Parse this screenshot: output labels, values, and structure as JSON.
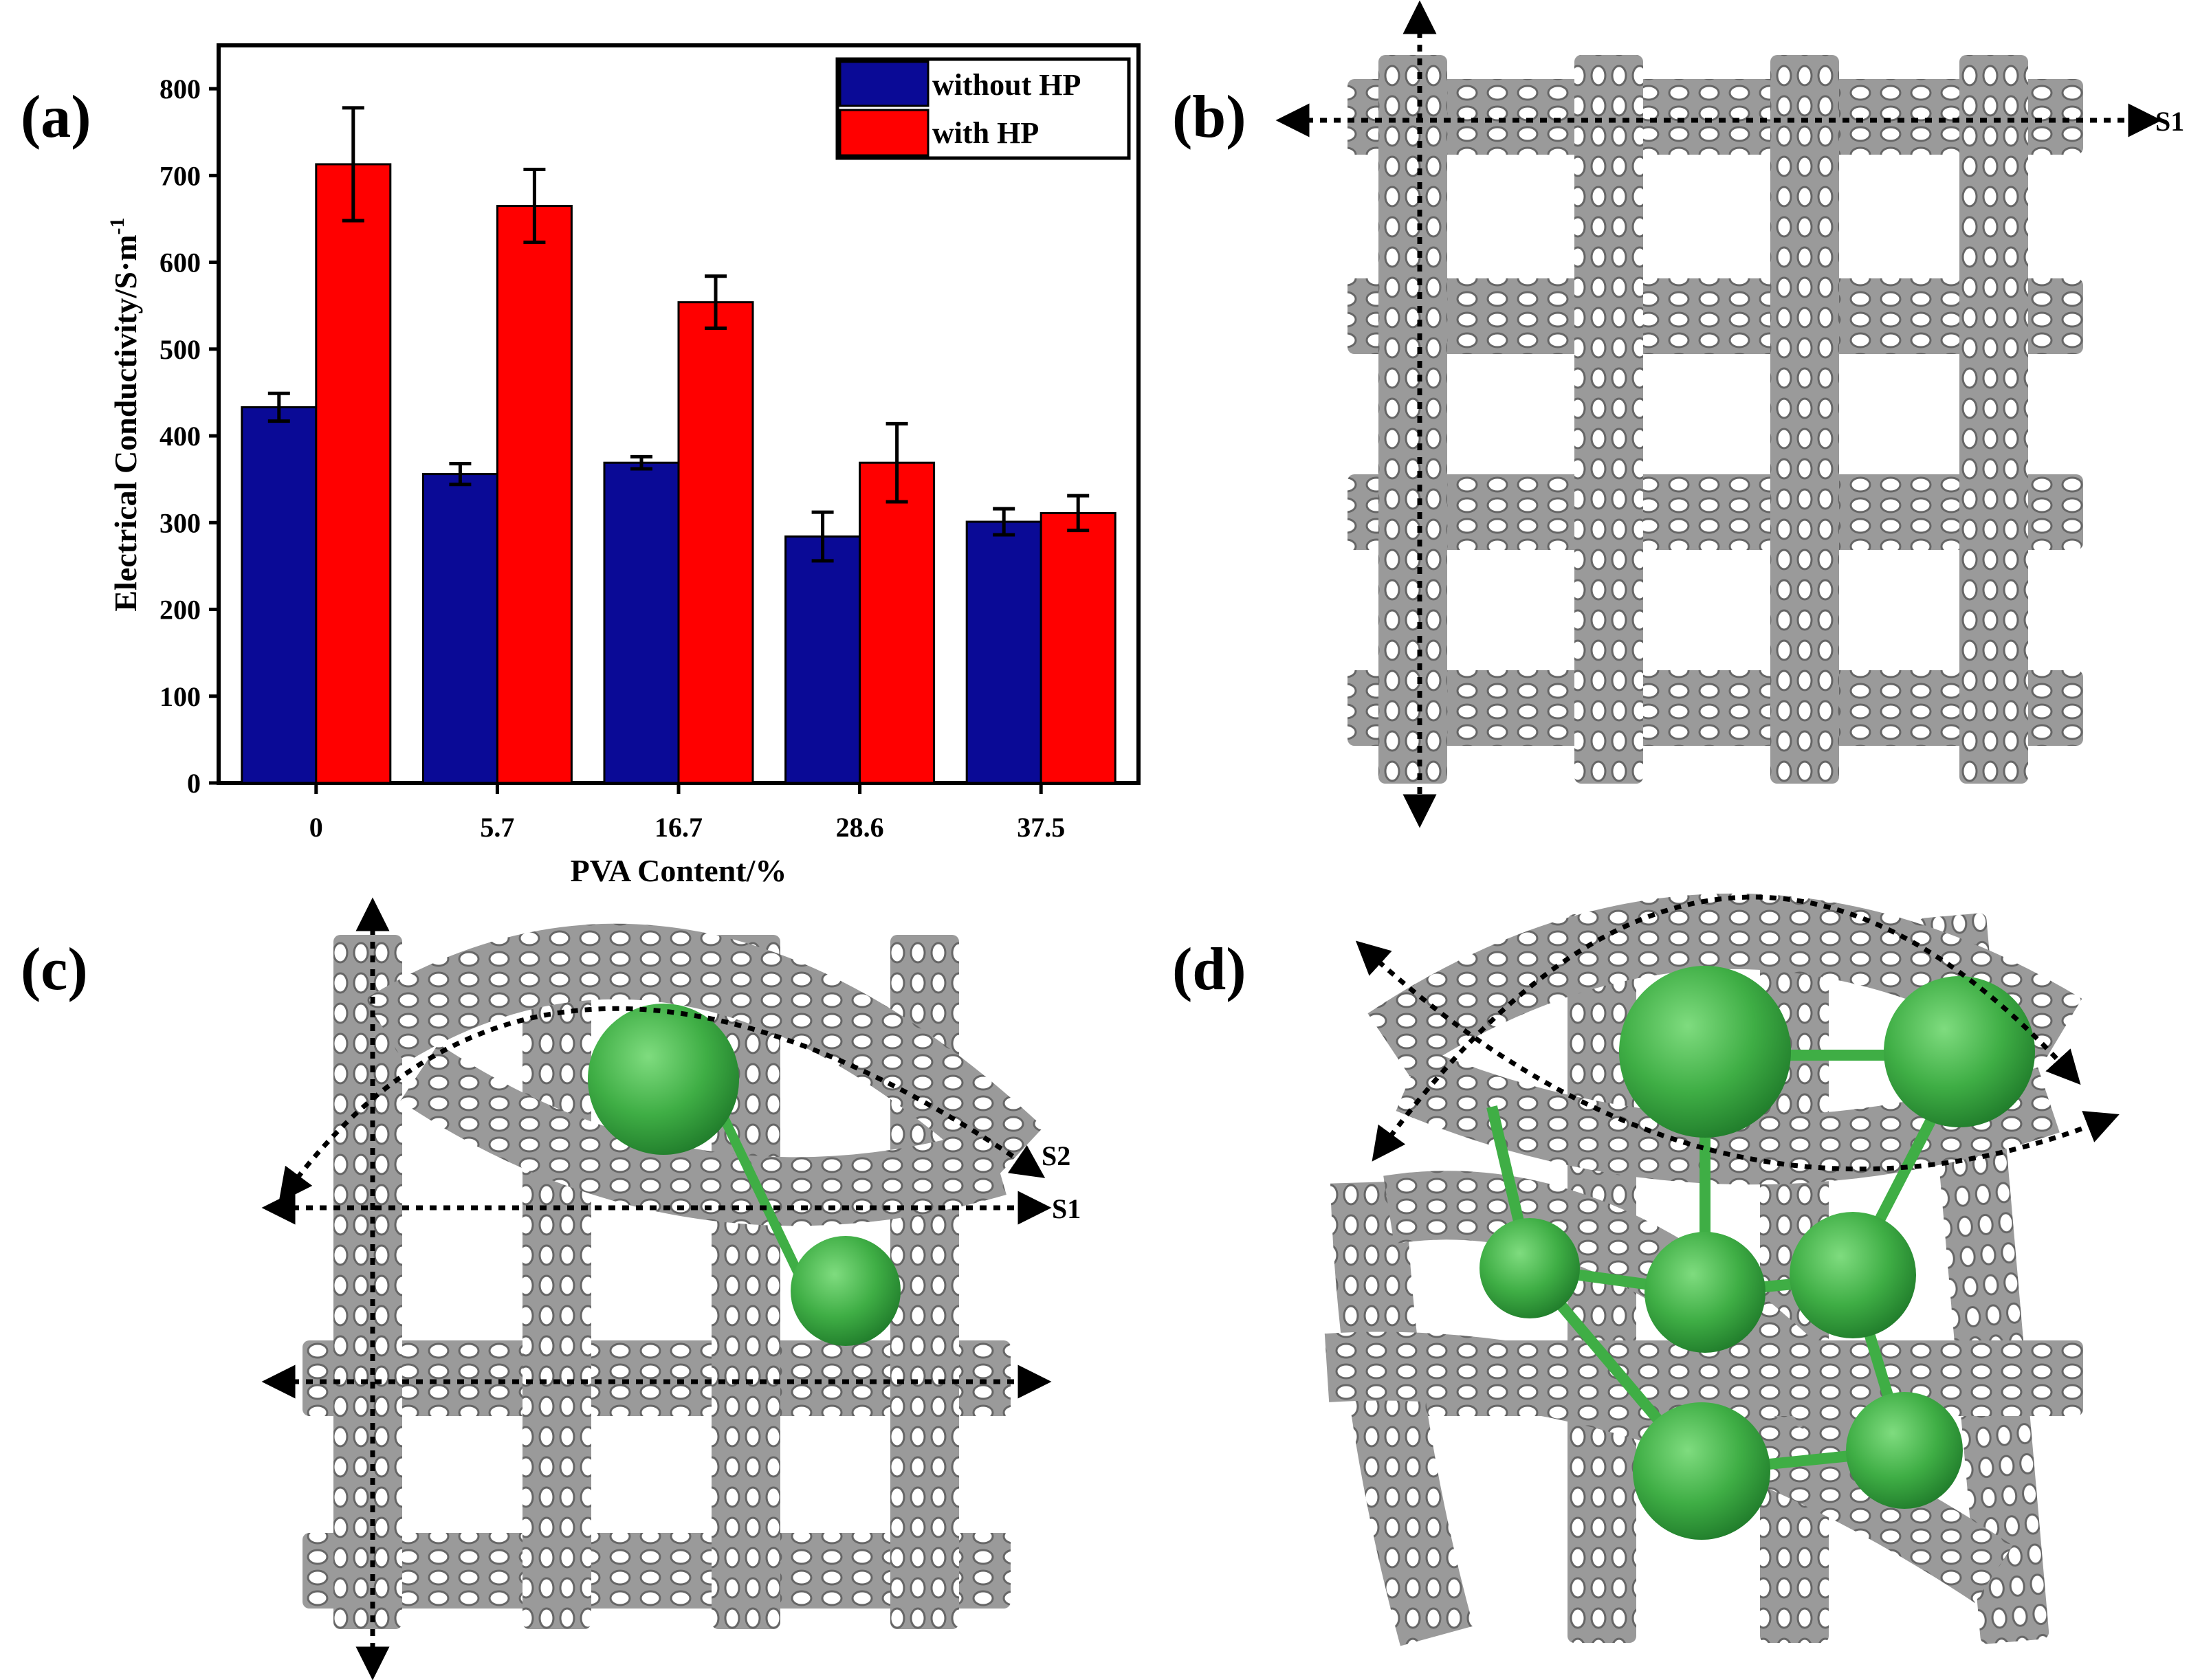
{
  "panels": {
    "a": "(a)",
    "b": "(b)",
    "c": "(c)",
    "d": "(d)"
  },
  "arrow_labels": {
    "b_s1": "S1",
    "c_s1": "S1",
    "c_s2": "S2"
  },
  "colors": {
    "without_hp": "#0a0a96",
    "with_hp": "#ff0000",
    "tube": "#8f8f8f",
    "tube_dark": "#5a5a5a",
    "sphere": "#3fae45",
    "sphere_dark": "#2a8a35"
  },
  "chart_data": {
    "type": "bar",
    "title": "",
    "xlabel": "PVA Content/%",
    "ylabel": "Electrical Conductivity/S·m",
    "ylabel_sup": "-1",
    "categories": [
      "0",
      "5.7",
      "16.7",
      "28.6",
      "37.5"
    ],
    "ylim": [
      0,
      850
    ],
    "yticks": [
      0,
      100,
      200,
      300,
      400,
      500,
      600,
      700,
      800
    ],
    "ytick_labels": [
      "0",
      "100",
      "200",
      "300",
      "400",
      "500",
      "600",
      "700",
      "800"
    ],
    "legend_position": "top-right",
    "series": [
      {
        "name": "without HP",
        "color_key": "without_hp",
        "values": [
          433,
          356,
          369,
          284,
          301
        ],
        "errors": [
          16,
          12,
          7,
          28,
          15
        ]
      },
      {
        "name": "with HP",
        "color_key": "with_hp",
        "values": [
          713,
          665,
          554,
          369,
          311
        ],
        "errors": [
          65,
          42,
          30,
          45,
          20
        ]
      }
    ]
  }
}
